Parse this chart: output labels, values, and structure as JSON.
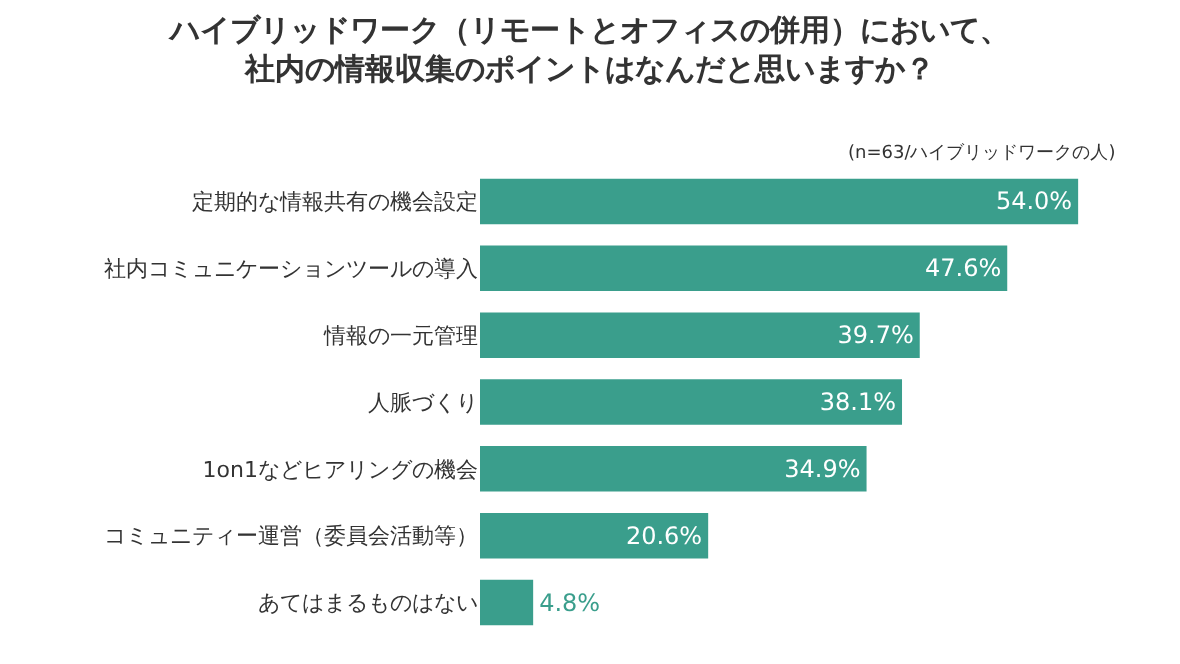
{
  "chart_data": {
    "type": "bar",
    "orientation": "horizontal",
    "title": "ハイブリッドワーク（リモートとオフィスの併用）において、社内の情報収集のポイントはなんだと思いますか？",
    "subtitle": "(n=63/ハイブリッドワークの人)",
    "categories": [
      "定期的な情報共有の機会設定",
      "社内コミュニケーションツールの導入",
      "情報の一元管理",
      "人脈づくり",
      "1on1などヒアリングの機会",
      "コミュニティー運営（委員会活動等）",
      "あてはまるものはない"
    ],
    "values": [
      54.0,
      47.6,
      39.7,
      38.1,
      34.9,
      20.6,
      4.8
    ],
    "value_labels": [
      "54.0%",
      "47.6%",
      "39.7%",
      "38.1%",
      "34.9%",
      "20.6%",
      "4.8%"
    ],
    "color": "#3a9e8c",
    "legend": false
  }
}
